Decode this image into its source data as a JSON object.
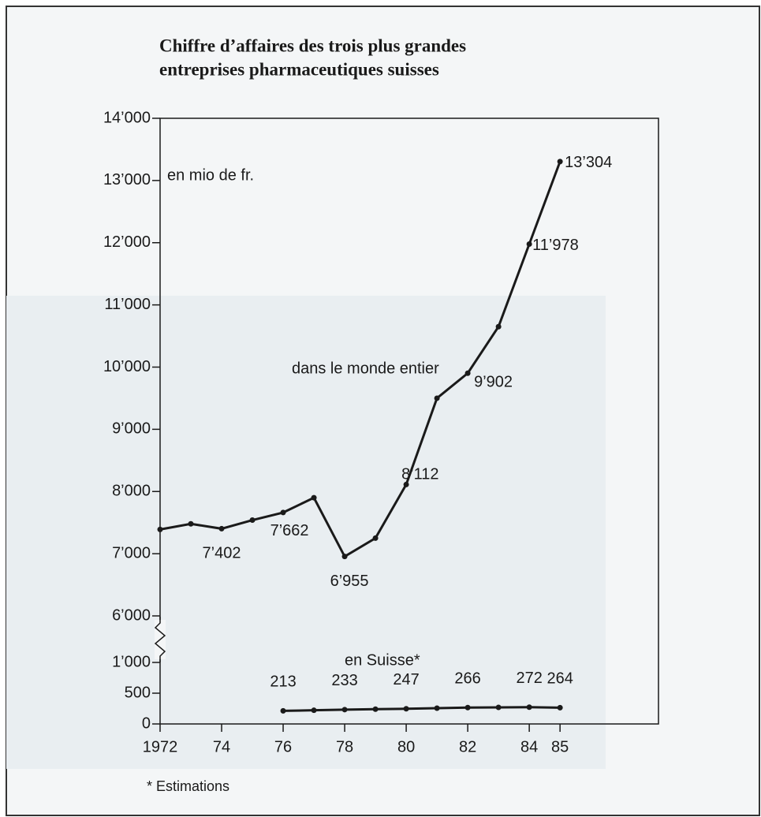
{
  "chart_data": {
    "type": "line",
    "title": [
      "Chiffre d’affaires des trois plus grandes",
      "entreprises pharmaceutiques suisses"
    ],
    "annotations": [
      "en mio de fr.",
      "dans le monde entier",
      "en Suisse*"
    ],
    "footnote": "* Estimations",
    "x": [
      1972,
      1973,
      1974,
      1975,
      1976,
      1977,
      1978,
      1979,
      1980,
      1981,
      1982,
      1983,
      1984,
      1985
    ],
    "series": [
      {
        "color": "#1a1a1a",
        "values": [
          7390,
          7480,
          7402,
          7540,
          7662,
          7900,
          6955,
          7250,
          8112,
          9500,
          9902,
          10650,
          11978,
          13304
        ],
        "value_labels": [
          null,
          null,
          "7’402",
          null,
          "7’662",
          null,
          "6’955",
          null,
          "8’112",
          null,
          "9’902",
          null,
          "11’978",
          "13’304"
        ]
      },
      {
        "color": "#1a1a1a",
        "values": [
          null,
          null,
          null,
          null,
          213,
          222,
          233,
          240,
          247,
          256,
          266,
          269,
          272,
          264
        ],
        "value_labels": [
          null,
          null,
          null,
          null,
          "213",
          null,
          "233",
          null,
          "247",
          null,
          "266",
          null,
          "272",
          "264"
        ]
      }
    ],
    "xlim": [
      1972,
      1988.2
    ],
    "xticks": [
      {
        "value": 1972,
        "label": "1972"
      },
      {
        "value": 1974,
        "label": "74"
      },
      {
        "value": 1976,
        "label": "76"
      },
      {
        "value": 1978,
        "label": "78"
      },
      {
        "value": 1980,
        "label": "80"
      },
      {
        "value": 1982,
        "label": "82"
      },
      {
        "value": 1984,
        "label": "84"
      },
      {
        "value": 1985,
        "label": "85"
      }
    ],
    "ylim": [
      0,
      14000
    ],
    "axis_break": [
      1000,
      6000
    ],
    "yticks": [
      0,
      500,
      {
        "value": 1000,
        "label": "1’000"
      },
      {
        "value": 6000,
        "label": "6’000"
      },
      {
        "value": 7000,
        "label": "7’000"
      },
      {
        "value": 8000,
        "label": "8’000"
      },
      {
        "value": 9000,
        "label": "9’000"
      },
      {
        "value": 10000,
        "label": "10’000"
      },
      {
        "value": 11000,
        "label": "11’000"
      },
      {
        "value": 12000,
        "label": "12’000"
      },
      {
        "value": 13000,
        "label": "13’000"
      },
      {
        "value": 14000,
        "label": "14’000"
      }
    ]
  }
}
